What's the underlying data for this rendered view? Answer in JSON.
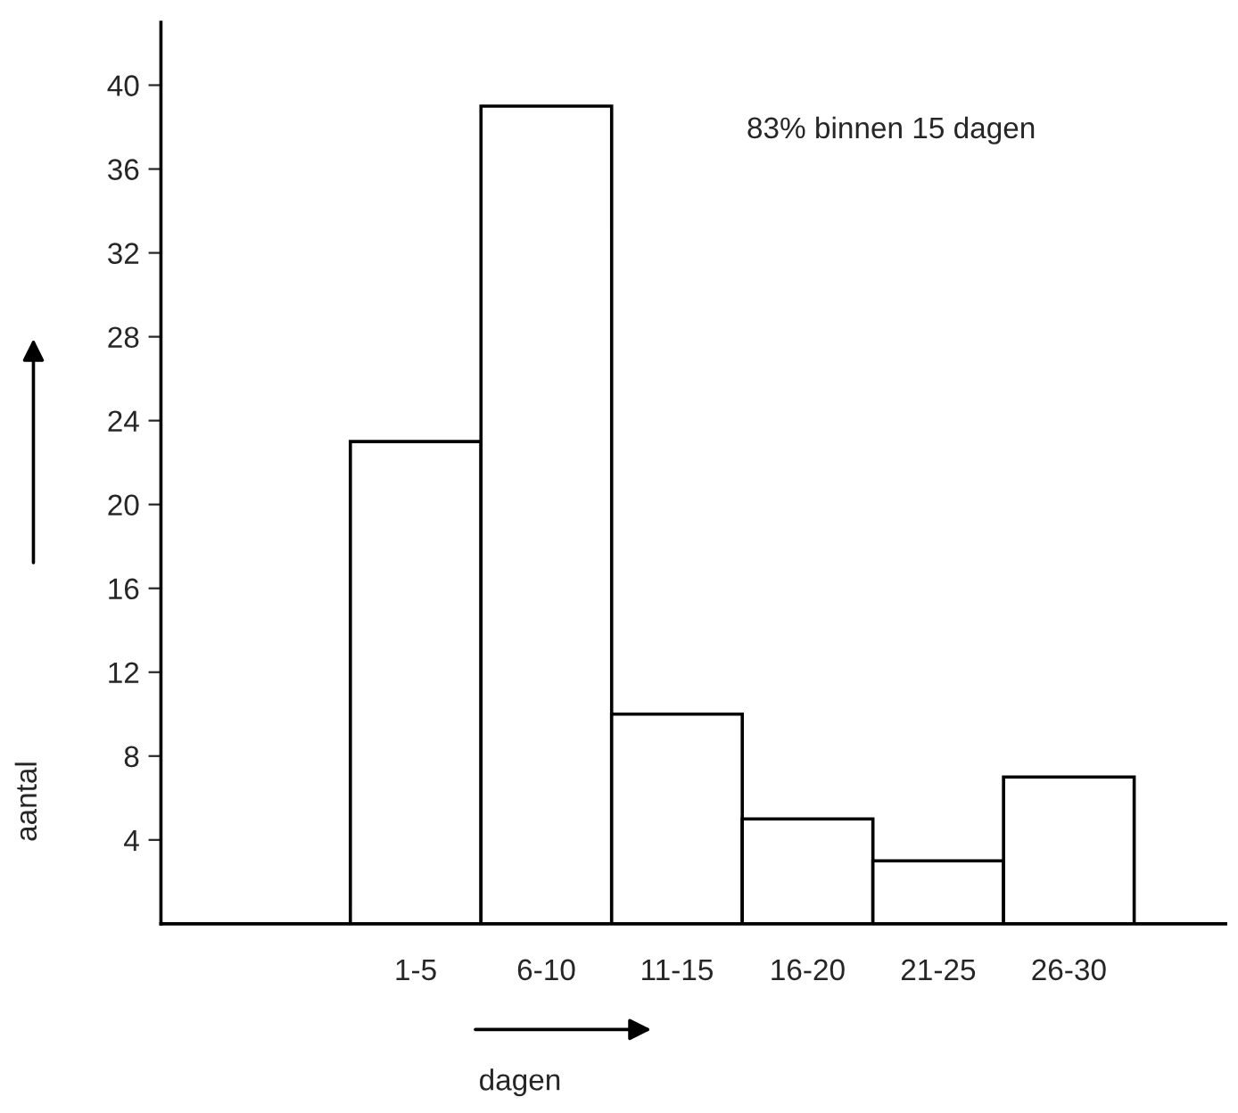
{
  "chart_data": {
    "type": "bar",
    "categories": [
      "1-5",
      "6-10",
      "11-15",
      "16-20",
      "21-25",
      "26-30"
    ],
    "values": [
      23,
      39,
      10,
      5,
      3,
      7
    ],
    "color": "#ffffff",
    "xlabel": "dagen",
    "ylabel": "aantal",
    "ylim": [
      0,
      43
    ],
    "yticks": [
      4,
      8,
      12,
      16,
      20,
      24,
      28,
      32,
      36,
      40
    ],
    "annotations": [
      "83% binnen 15 dagen"
    ],
    "grid": false,
    "legend": false
  }
}
